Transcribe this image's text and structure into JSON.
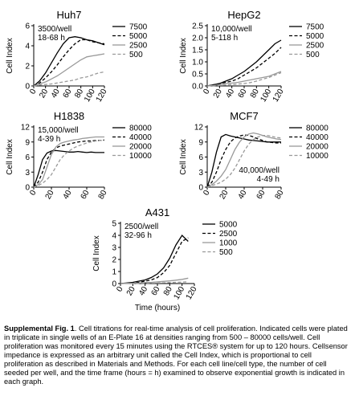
{
  "chart_data": [
    {
      "type": "line",
      "title": "Huh7",
      "ylabel": "Cell Index",
      "annotation": [
        "3500/well",
        "18-68 h"
      ],
      "annotation_position": "upper left",
      "legend": "right",
      "x": [
        0,
        10,
        20,
        30,
        40,
        50,
        60,
        70,
        80,
        90,
        100,
        110,
        120
      ],
      "xlim": [
        0,
        120
      ],
      "xticks": [
        0,
        20,
        40,
        60,
        80,
        100,
        120
      ],
      "ylim": [
        0,
        6
      ],
      "yticks": [
        0,
        2,
        4,
        6
      ],
      "series": [
        {
          "name": "7500",
          "color": "#000000",
          "dash": false,
          "values": [
            0,
            0.5,
            1.3,
            2.3,
            3.3,
            4.2,
            4.8,
            4.9,
            4.8,
            4.6,
            4.5,
            4.3,
            4.1
          ]
        },
        {
          "name": "5000",
          "color": "#000000",
          "dash": true,
          "values": [
            0,
            0.3,
            0.8,
            1.4,
            2.1,
            2.9,
            3.6,
            4.2,
            4.6,
            4.6,
            4.4,
            4.3,
            4.2
          ]
        },
        {
          "name": "2500",
          "color": "#999999",
          "dash": false,
          "values": [
            0,
            0.2,
            0.4,
            0.7,
            1.0,
            1.4,
            1.8,
            2.2,
            2.6,
            2.9,
            3.0,
            3.1,
            3.2
          ]
        },
        {
          "name": "500",
          "color": "#999999",
          "dash": true,
          "values": [
            0,
            0.1,
            0.15,
            0.2,
            0.3,
            0.4,
            0.5,
            0.6,
            0.8,
            0.9,
            1.1,
            1.3,
            1.4
          ]
        }
      ]
    },
    {
      "type": "line",
      "title": "HepG2",
      "ylabel": "Cell Index",
      "annotation": [
        "10,000/well",
        "5-118 h"
      ],
      "annotation_position": "upper left",
      "legend": "right",
      "x": [
        0,
        10,
        20,
        30,
        40,
        50,
        60,
        70,
        80,
        90,
        100,
        110,
        120
      ],
      "xlim": [
        0,
        120
      ],
      "xticks": [
        0,
        20,
        40,
        60,
        80,
        100,
        120
      ],
      "ylim": [
        0,
        2.5
      ],
      "yticks": [
        {
          "value": 0,
          "label": "0.0"
        },
        0.5,
        {
          "value": 1,
          "label": "1.0"
        },
        1.5,
        {
          "value": 2,
          "label": "2.0"
        },
        2.5
      ],
      "series": [
        {
          "name": "7500",
          "color": "#000000",
          "dash": false,
          "values": [
            0,
            0.05,
            0.1,
            0.2,
            0.3,
            0.45,
            0.6,
            0.8,
            1.0,
            1.25,
            1.5,
            1.75,
            1.9
          ]
        },
        {
          "name": "5000",
          "color": "#000000",
          "dash": true,
          "values": [
            0,
            0.05,
            0.1,
            0.15,
            0.2,
            0.3,
            0.45,
            0.6,
            0.75,
            0.95,
            1.15,
            1.35,
            1.6
          ]
        },
        {
          "name": "2500",
          "color": "#999999",
          "dash": false,
          "values": [
            0,
            0.02,
            0.05,
            0.1,
            0.12,
            0.15,
            0.2,
            0.25,
            0.3,
            0.35,
            0.4,
            0.5,
            0.6
          ]
        },
        {
          "name": "500",
          "color": "#999999",
          "dash": true,
          "values": [
            0,
            0.01,
            0.02,
            0.04,
            0.06,
            0.08,
            0.1,
            0.14,
            0.2,
            0.28,
            0.35,
            0.45,
            0.55
          ]
        }
      ]
    },
    {
      "type": "line",
      "title": "H1838",
      "ylabel": "Cell Index",
      "annotation": [
        "15,000/well",
        "4-39 h"
      ],
      "annotation_position": "upper left",
      "legend": "right",
      "x": [
        0,
        5,
        10,
        15,
        20,
        25,
        30,
        35,
        40,
        45,
        50,
        55,
        60,
        65,
        70,
        75,
        80
      ],
      "xlim": [
        0,
        80
      ],
      "xticks": [
        0,
        20,
        40,
        60,
        80
      ],
      "ylim": [
        0,
        12
      ],
      "yticks": [
        0,
        3,
        6,
        9,
        12
      ],
      "series": [
        {
          "name": "80000",
          "color": "#000000",
          "dash": false,
          "values": [
            0,
            2.5,
            5.5,
            6.8,
            7.2,
            7.3,
            7.2,
            7.1,
            7.0,
            7.0,
            7.1,
            7.0,
            6.9,
            7.0,
            6.9,
            6.9,
            6.9
          ]
        },
        {
          "name": "40000",
          "color": "#000000",
          "dash": true,
          "values": [
            0,
            1,
            3,
            5.5,
            7,
            7.8,
            8.2,
            8.4,
            8.6,
            8.8,
            9,
            9.1,
            9.2,
            9.2,
            9.3,
            9.3,
            9.4
          ]
        },
        {
          "name": "20000",
          "color": "#999999",
          "dash": false,
          "values": [
            0,
            0.5,
            1.5,
            4,
            6.5,
            8,
            8.7,
            9.0,
            9.2,
            9.4,
            9.5,
            9.7,
            9.8,
            9.9,
            10,
            10,
            10
          ]
        },
        {
          "name": "10000",
          "color": "#999999",
          "dash": true,
          "values": [
            0,
            0.3,
            0.8,
            1.5,
            2.5,
            4,
            5.5,
            6.5,
            7.2,
            7.8,
            8.2,
            8.5,
            8.8,
            9.0,
            9.2,
            9.3,
            9.3
          ]
        }
      ]
    },
    {
      "type": "line",
      "title": "MCF7",
      "ylabel": "Cell Index",
      "annotation": [
        "40,000/well",
        "4-49 h"
      ],
      "annotation_position": "lower right",
      "legend": "right",
      "x": [
        0,
        5,
        10,
        15,
        20,
        25,
        30,
        35,
        40,
        45,
        50,
        55,
        60,
        65,
        70,
        75,
        80
      ],
      "xlim": [
        0,
        80
      ],
      "xticks": [
        0,
        20,
        40,
        60,
        80
      ],
      "ylim": [
        0,
        12
      ],
      "yticks": [
        0,
        3,
        6,
        9,
        12
      ],
      "series": [
        {
          "name": "80000",
          "color": "#000000",
          "dash": false,
          "values": [
            0,
            3,
            7,
            10,
            10.5,
            10.2,
            10,
            9.8,
            9.6,
            9.4,
            9.3,
            9.2,
            9.1,
            9,
            9,
            9,
            9
          ]
        },
        {
          "name": "40000",
          "color": "#000000",
          "dash": true,
          "values": [
            0,
            1,
            3,
            5.5,
            7.5,
            9,
            9.8,
            10.2,
            10.4,
            10.3,
            10,
            9.6,
            9.3,
            9,
            8.9,
            8.8,
            8.8
          ]
        },
        {
          "name": "20000",
          "color": "#999999",
          "dash": false,
          "values": [
            0,
            0.5,
            1.2,
            2.2,
            3.5,
            5.5,
            7.5,
            9,
            10,
            10.6,
            10.8,
            10.6,
            10.3,
            10,
            9.8,
            9.6,
            9.5
          ]
        },
        {
          "name": "10000",
          "color": "#999999",
          "dash": true,
          "values": [
            0,
            0.3,
            0.6,
            1,
            1.6,
            2.5,
            3.8,
            5.5,
            7.2,
            8.6,
            9.5,
            10,
            10.3,
            10.3,
            10.1,
            9.9,
            9.8
          ]
        }
      ]
    },
    {
      "type": "line",
      "title": "A431",
      "ylabel": "Cell Index",
      "xlabel": "Time (hours)",
      "annotation": [
        "2500/well",
        "32-96 h"
      ],
      "annotation_position": "upper left",
      "legend": "right",
      "x": [
        0,
        10,
        20,
        30,
        40,
        50,
        60,
        70,
        80,
        90,
        100,
        110
      ],
      "xlim": [
        0,
        120
      ],
      "xticks": [
        0,
        20,
        40,
        60,
        80,
        100,
        120
      ],
      "ylim": [
        0,
        5
      ],
      "yticks": [
        0,
        1,
        2,
        3,
        4,
        5
      ],
      "series": [
        {
          "name": "5000",
          "color": "#000000",
          "dash": false,
          "values": [
            0,
            0.05,
            0.1,
            0.2,
            0.3,
            0.5,
            0.8,
            1.3,
            2.1,
            3.2,
            4.0,
            3.5
          ]
        },
        {
          "name": "2500",
          "color": "#000000",
          "dash": true,
          "values": [
            0,
            0.03,
            0.06,
            0.1,
            0.2,
            0.3,
            0.5,
            0.9,
            1.5,
            2.5,
            3.5,
            3.8
          ]
        },
        {
          "name": "1000",
          "color": "#999999",
          "dash": false,
          "values": [
            0,
            0.02,
            0.03,
            0.05,
            0.08,
            0.1,
            0.14,
            0.18,
            0.22,
            0.28,
            0.35,
            0.45
          ]
        },
        {
          "name": "500",
          "color": "#999999",
          "dash": true,
          "values": [
            0,
            0,
            0.01,
            0.02,
            0.03,
            0.04,
            0.05,
            0.06,
            0.08,
            0.1,
            0.12,
            0.15
          ]
        }
      ]
    }
  ],
  "caption": {
    "label": "Supplemental Fig. 1",
    "text": ". Cell titrations for real-time analysis of cell proliferation. Indicated cells were plated in triplicate in single wells of an E-Plate 16 at densities ranging from 500 – 80000 cells/well. Cell proliferation was monitored every 15 minutes using the RTCES® system for up to 120 hours. Cellsensor impedance is expressed as an arbitrary unit called the Cell Index, which is proportional to cell proliferation as described in Materials and Methods. For each cell line/cell type, the number of cell seeded per well, and the time frame (hours = h) examined to observe exponential growth is indicated in each graph."
  }
}
